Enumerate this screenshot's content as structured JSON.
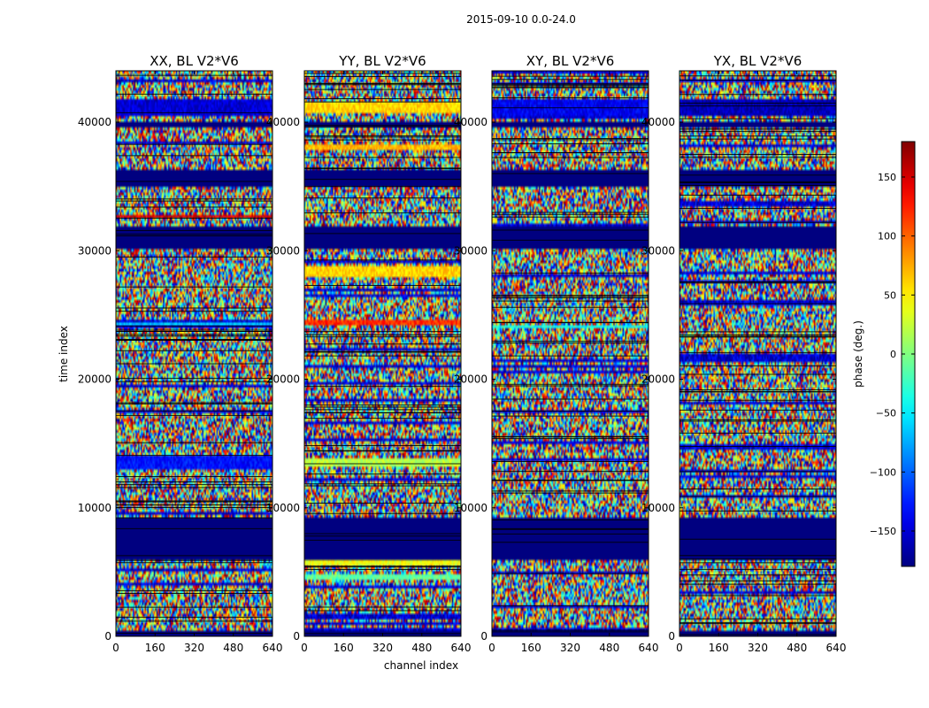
{
  "figure_title": "2015-09-10 0.0-24.0",
  "chart_data": {
    "type": "heatmap",
    "suptitle": "2015-09-10 0.0-24.0",
    "xlabel": "channel index",
    "ylabel": "time index",
    "colorbar_label": "phase (deg.)",
    "colormap": "jet",
    "value_range": [
      -180,
      180
    ],
    "colorbar_ticks": [
      150,
      100,
      50,
      0,
      -50,
      -100,
      -150
    ],
    "colorbar_tick_labels": [
      "150",
      "100",
      "50",
      "0",
      "−50",
      "−100",
      "−150"
    ],
    "xlim": [
      0,
      640
    ],
    "ylim": [
      0,
      44000
    ],
    "xticks": [
      0,
      160,
      320,
      480,
      640
    ],
    "xtick_labels": [
      "0",
      "160",
      "320",
      "480",
      "640"
    ],
    "yticks": [
      0,
      10000,
      20000,
      30000,
      40000
    ],
    "ytick_labels": [
      "0",
      "10000",
      "20000",
      "30000",
      "40000"
    ],
    "panels": [
      {
        "title": "XX, BL V2*V6",
        "polarization": "XX"
      },
      {
        "title": "YY, BL V2*V6",
        "polarization": "YY"
      },
      {
        "title": "XY, BL V2*V6",
        "polarization": "XY"
      },
      {
        "title": "YX, BL V2*V6",
        "polarization": "YX"
      }
    ],
    "masked_time_bands": [
      {
        "from": 0,
        "to": 400
      },
      {
        "from": 6000,
        "to": 9300
      },
      {
        "from": 30200,
        "to": 31800
      },
      {
        "from": 35000,
        "to": 36200
      },
      {
        "from": 39500,
        "to": 40000
      }
    ],
    "coherent_bands": [
      {
        "panel": "XX",
        "from": 40500,
        "to": 41800,
        "phase": -150
      },
      {
        "panel": "XX",
        "from": 24100,
        "to": 24500,
        "phase": -60
      },
      {
        "panel": "XX",
        "from": 32500,
        "to": 32800,
        "phase": 150
      },
      {
        "panel": "XX",
        "from": 13000,
        "to": 14000,
        "phase": -130
      },
      {
        "panel": "YY",
        "from": 40800,
        "to": 41600,
        "phase": 60
      },
      {
        "panel": "YY",
        "from": 24200,
        "to": 24600,
        "phase": 120
      },
      {
        "panel": "YY",
        "from": 28000,
        "to": 28800,
        "phase": 60
      },
      {
        "panel": "YY",
        "from": 37800,
        "to": 38200,
        "phase": 70
      },
      {
        "panel": "YY",
        "from": 4400,
        "to": 4800,
        "phase": -10
      },
      {
        "panel": "YY",
        "from": 5500,
        "to": 5900,
        "phase": 40
      },
      {
        "panel": "YY",
        "from": 13200,
        "to": 13800,
        "phase": 20
      },
      {
        "panel": "XY",
        "from": 40400,
        "to": 41800,
        "phase": -140
      },
      {
        "panel": "XY",
        "from": 24000,
        "to": 24300,
        "phase": -40
      },
      {
        "panel": "YX",
        "from": 40400,
        "to": 41800,
        "phase": -160
      }
    ]
  }
}
